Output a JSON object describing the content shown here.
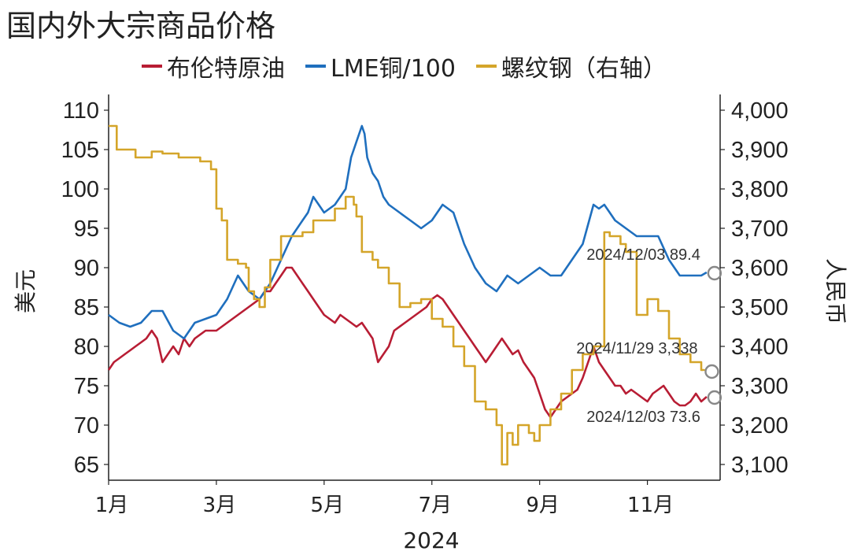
{
  "chart_data": {
    "type": "line",
    "title": "国内外大宗商品价格",
    "xlabel": "2024",
    "ylabel_left": "美元",
    "ylabel_right": "人民币",
    "ylim_left": [
      63,
      112
    ],
    "ylim_right": [
      3060,
      4040
    ],
    "yticks_left": [
      "110",
      "105",
      "100",
      "95",
      "90",
      "85",
      "80",
      "75",
      "70",
      "65"
    ],
    "yticks_right": [
      "4,000",
      "3,900",
      "3,800",
      "3,700",
      "3,600",
      "3,500",
      "3,400",
      "3,300",
      "3,200",
      "3,100"
    ],
    "xticks": [
      "1月",
      "3月",
      "5月",
      "7月",
      "9月",
      "11月"
    ],
    "xtick_months": [
      1,
      3,
      5,
      7,
      9,
      11
    ],
    "legend_position": "top",
    "series": [
      {
        "name": "布伦特原油",
        "axis": "left",
        "color": "#b81d34",
        "x": [
          1.0,
          1.1,
          1.2,
          1.3,
          1.4,
          1.5,
          1.6,
          1.7,
          1.8,
          1.9,
          2.0,
          2.1,
          2.2,
          2.3,
          2.4,
          2.5,
          2.6,
          2.8,
          3.0,
          3.2,
          3.4,
          3.6,
          3.8,
          3.9,
          4.0,
          4.1,
          4.2,
          4.3,
          4.4,
          4.5,
          4.6,
          4.7,
          4.8,
          5.0,
          5.1,
          5.2,
          5.3,
          5.4,
          5.5,
          5.6,
          5.7,
          5.8,
          5.9,
          6.0,
          6.1,
          6.2,
          6.3,
          6.5,
          6.7,
          6.9,
          7.0,
          7.1,
          7.2,
          7.3,
          7.4,
          7.5,
          7.6,
          7.7,
          7.8,
          7.9,
          8.0,
          8.1,
          8.2,
          8.3,
          8.4,
          8.5,
          8.6,
          8.7,
          8.8,
          8.9,
          9.0,
          9.1,
          9.2,
          9.3,
          9.4,
          9.5,
          9.6,
          9.7,
          9.8,
          9.9,
          10.0,
          10.1,
          10.2,
          10.3,
          10.4,
          10.5,
          10.6,
          10.7,
          10.8,
          10.9,
          11.0,
          11.1,
          11.2,
          11.3,
          11.4,
          11.5,
          11.6,
          11.7,
          11.8,
          11.9,
          12.0,
          12.1
        ],
        "values": [
          77,
          78,
          78.5,
          79,
          79.5,
          80,
          80.5,
          81,
          82,
          81,
          78,
          79,
          80,
          79,
          81,
          80,
          81,
          82,
          82,
          83,
          84,
          85,
          86,
          87,
          87,
          88,
          89,
          90,
          90,
          89,
          88,
          87,
          86,
          84,
          83.5,
          83,
          84,
          83.5,
          83,
          82.5,
          83,
          82,
          81,
          78,
          79,
          80,
          82,
          83,
          84,
          85,
          86,
          86.5,
          86,
          85,
          84,
          83,
          82,
          81,
          80,
          79,
          78,
          79,
          80,
          81,
          80,
          79,
          79.5,
          78,
          77,
          76,
          74,
          72,
          71,
          72,
          73,
          73.5,
          74,
          74.5,
          76,
          78,
          80,
          78,
          77,
          76,
          75,
          75,
          74,
          74.5,
          74,
          73.5,
          73,
          74,
          74.5,
          75,
          74,
          73,
          72.5,
          72.5,
          73,
          74,
          73,
          73.6
        ]
      },
      {
        "name": "LME铜/100",
        "axis": "left",
        "color": "#1f6fbe",
        "x": [
          1.0,
          1.2,
          1.4,
          1.6,
          1.8,
          2.0,
          2.2,
          2.4,
          2.6,
          2.8,
          3.0,
          3.2,
          3.4,
          3.6,
          3.8,
          4.0,
          4.2,
          4.4,
          4.6,
          4.7,
          4.8,
          4.9,
          5.0,
          5.2,
          5.4,
          5.5,
          5.6,
          5.7,
          5.75,
          5.8,
          5.9,
          6.0,
          6.1,
          6.2,
          6.4,
          6.6,
          6.8,
          7.0,
          7.2,
          7.4,
          7.6,
          7.8,
          8.0,
          8.2,
          8.4,
          8.6,
          8.8,
          9.0,
          9.2,
          9.4,
          9.6,
          9.8,
          10.0,
          10.1,
          10.2,
          10.3,
          10.4,
          10.6,
          10.8,
          11.0,
          11.2,
          11.4,
          11.6,
          11.8,
          12.0,
          12.1
        ],
        "values": [
          84,
          83,
          82.5,
          83,
          84.5,
          84.5,
          82,
          81,
          83,
          83.5,
          84,
          86,
          89,
          87,
          86,
          88,
          91,
          94,
          96,
          97,
          99,
          98,
          97,
          98,
          100,
          104,
          106,
          108,
          107,
          104,
          102,
          101,
          99,
          98,
          97,
          96,
          95,
          96,
          98,
          97,
          93,
          90,
          88,
          87,
          89,
          88,
          89,
          90,
          89,
          89,
          91,
          93,
          98,
          97.5,
          98,
          97,
          96,
          95,
          94,
          94,
          94,
          91,
          89,
          89,
          89,
          89.4
        ]
      },
      {
        "name": "螺纹钢（右轴）",
        "axis": "right",
        "color": "#d4a52a",
        "x": [
          1.0,
          1.1,
          1.15,
          1.5,
          1.8,
          2.0,
          2.3,
          2.5,
          2.7,
          2.9,
          3.0,
          3.1,
          3.2,
          3.4,
          3.55,
          3.6,
          3.7,
          3.8,
          3.9,
          4.0,
          4.2,
          4.4,
          4.6,
          4.8,
          5.0,
          5.2,
          5.4,
          5.55,
          5.6,
          5.7,
          5.9,
          6.0,
          6.2,
          6.4,
          6.6,
          6.8,
          7.0,
          7.2,
          7.4,
          7.6,
          7.8,
          8.0,
          8.2,
          8.3,
          8.4,
          8.5,
          8.6,
          8.8,
          8.9,
          9.0,
          9.2,
          9.4,
          9.6,
          9.8,
          10.0,
          10.1,
          10.2,
          10.3,
          10.5,
          10.6,
          10.8,
          11.0,
          11.2,
          11.4,
          11.6,
          11.8,
          12.0,
          12.05
        ],
        "values": [
          3960,
          3960,
          3900,
          3880,
          3895,
          3890,
          3880,
          3880,
          3870,
          3850,
          3750,
          3720,
          3620,
          3610,
          3600,
          3540,
          3520,
          3500,
          3550,
          3620,
          3680,
          3680,
          3690,
          3720,
          3720,
          3750,
          3780,
          3760,
          3730,
          3640,
          3620,
          3600,
          3560,
          3500,
          3510,
          3520,
          3470,
          3450,
          3400,
          3350,
          3260,
          3240,
          3200,
          3100,
          3180,
          3150,
          3200,
          3180,
          3160,
          3200,
          3240,
          3280,
          3340,
          3380,
          3400,
          3400,
          3690,
          3680,
          3660,
          3640,
          3480,
          3520,
          3490,
          3420,
          3380,
          3360,
          3340,
          3338
        ]
      }
    ],
    "annotations": [
      {
        "text": "2024/12/03 89.4",
        "series": "LME铜/100",
        "x": 12.1,
        "y": 89.4,
        "axis": "left"
      },
      {
        "text": "2024/11/29 3,338",
        "series": "螺纹钢（右轴）",
        "x": 12.05,
        "y": 3338,
        "axis": "right"
      },
      {
        "text": "2024/12/03 73.6",
        "series": "布伦特原油",
        "x": 12.1,
        "y": 73.6,
        "axis": "left"
      }
    ]
  }
}
